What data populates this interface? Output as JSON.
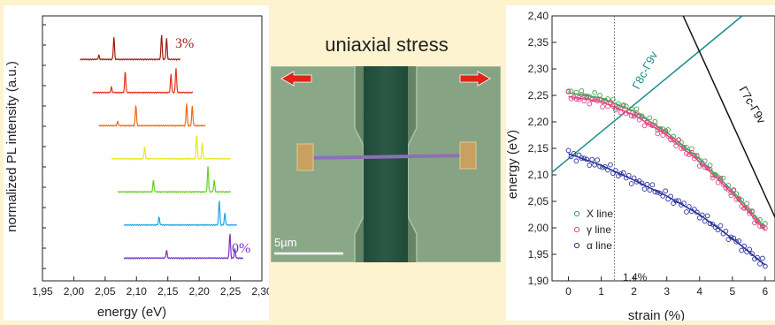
{
  "left_chart": {
    "ylabel": "normalized PL intensity (a.u.)",
    "xlabel": "energy (eV)",
    "x_ticks": [
      "1,95",
      "2,00",
      "2,05",
      "2,10",
      "2,15",
      "2,20",
      "2,25",
      "2,30"
    ],
    "annot_top": "3%",
    "annot_bottom": "0%"
  },
  "middle": {
    "title": "uniaxial stress",
    "scalebar": "5µm"
  },
  "right_chart": {
    "ylabel": "energy (eV)",
    "xlabel": "strain (%)",
    "y_ticks": [
      "1,90",
      "1,95",
      "2,00",
      "2,05",
      "2,10",
      "2,15",
      "2,20",
      "2,25",
      "2,30",
      "2,35",
      "2,40"
    ],
    "x_ticks": [
      "0",
      "1",
      "2",
      "3",
      "4",
      "5",
      "6"
    ],
    "strain_marker": "1.4%",
    "line_gamma8": "Γ8c-Γ9v",
    "line_gamma7": "Γ7c-Γ9v",
    "legend": [
      "X line",
      "γ line",
      "α line"
    ]
  },
  "chart_data": [
    {
      "type": "line",
      "title": "",
      "xlabel": "energy (eV)",
      "ylabel": "normalized PL intensity (a.u.)",
      "xlim": [
        1.95,
        2.3
      ],
      "series": [
        {
          "strain_label": "3%",
          "color": "#a01c10",
          "x_start": 2.01,
          "x_end": 2.17,
          "peaks": [
            {
              "x": 2.064,
              "h": 0.85
            },
            {
              "x": 2.14,
              "h": 0.95
            },
            {
              "x": 2.148,
              "h": 0.8
            },
            {
              "x": 2.04,
              "h": 0.15
            }
          ]
        },
        {
          "color": "#e8321e",
          "x_start": 2.03,
          "x_end": 2.19,
          "peaks": [
            {
              "x": 2.082,
              "h": 0.8
            },
            {
              "x": 2.155,
              "h": 0.7
            },
            {
              "x": 2.163,
              "h": 0.95
            },
            {
              "x": 2.06,
              "h": 0.2
            }
          ]
        },
        {
          "color": "#ee6a18",
          "x_start": 2.04,
          "x_end": 2.21,
          "peaks": [
            {
              "x": 2.099,
              "h": 0.8
            },
            {
              "x": 2.18,
              "h": 0.85
            },
            {
              "x": 2.189,
              "h": 0.75
            },
            {
              "x": 2.07,
              "h": 0.15
            }
          ]
        },
        {
          "color": "#e8e81c",
          "x_start": 2.06,
          "x_end": 2.25,
          "peaks": [
            {
              "x": 2.113,
              "h": 0.45
            },
            {
              "x": 2.196,
              "h": 0.95
            },
            {
              "x": 2.205,
              "h": 0.6
            }
          ]
        },
        {
          "color": "#62d21e",
          "x_start": 2.07,
          "x_end": 2.25,
          "peaks": [
            {
              "x": 2.127,
              "h": 0.45
            },
            {
              "x": 2.214,
              "h": 0.95
            },
            {
              "x": 2.224,
              "h": 0.45
            }
          ]
        },
        {
          "color": "#1ea6e8",
          "x_start": 2.08,
          "x_end": 2.26,
          "peaks": [
            {
              "x": 2.136,
              "h": 0.3
            },
            {
              "x": 2.232,
              "h": 0.95
            },
            {
              "x": 2.241,
              "h": 0.45
            }
          ]
        },
        {
          "strain_label": "0%",
          "color": "#7b2fc4",
          "x_start": 2.08,
          "x_end": 2.27,
          "peaks": [
            {
              "x": 2.148,
              "h": 0.3
            },
            {
              "x": 2.249,
              "h": 0.95
            },
            {
              "x": 2.257,
              "h": 0.35
            }
          ]
        }
      ]
    },
    {
      "type": "scatter",
      "title": "",
      "xlabel": "strain (%)",
      "ylabel": "energy (eV)",
      "xlim": [
        -0.5,
        6.3
      ],
      "ylim": [
        1.9,
        2.4
      ],
      "series": [
        {
          "name": "X line",
          "color": "#3aa84a",
          "fit": [
            [
              0,
              2.255
            ],
            [
              1,
              2.245
            ],
            [
              2,
              2.22
            ],
            [
              3,
              2.18
            ],
            [
              4,
              2.13
            ],
            [
              5,
              2.07
            ],
            [
              6,
              2.0
            ]
          ]
        },
        {
          "name": "γ line",
          "color": "#e8408c",
          "fit": [
            [
              0,
              2.248
            ],
            [
              1,
              2.238
            ],
            [
              2,
              2.213
            ],
            [
              3,
              2.175
            ],
            [
              4,
              2.125
            ],
            [
              5,
              2.065
            ],
            [
              6,
              1.995
            ]
          ]
        },
        {
          "name": "α line",
          "color": "#2a2f9a",
          "fit": [
            [
              0,
              2.14
            ],
            [
              1,
              2.118
            ],
            [
              2,
              2.09
            ],
            [
              3,
              2.06
            ],
            [
              4,
              2.025
            ],
            [
              5,
              1.98
            ],
            [
              6,
              1.93
            ]
          ]
        }
      ],
      "theory_lines": [
        {
          "label": "Γ8c-Γ9v",
          "color": "#1a8c8c",
          "points": [
            [
              -0.5,
              2.105
            ],
            [
              5.3,
              2.4
            ]
          ]
        },
        {
          "label": "Γ7c-Γ9v",
          "color": "#111111",
          "points": [
            [
              3.5,
              2.4
            ],
            [
              6.3,
              2.02
            ]
          ]
        }
      ],
      "marker_x": 1.4
    }
  ]
}
